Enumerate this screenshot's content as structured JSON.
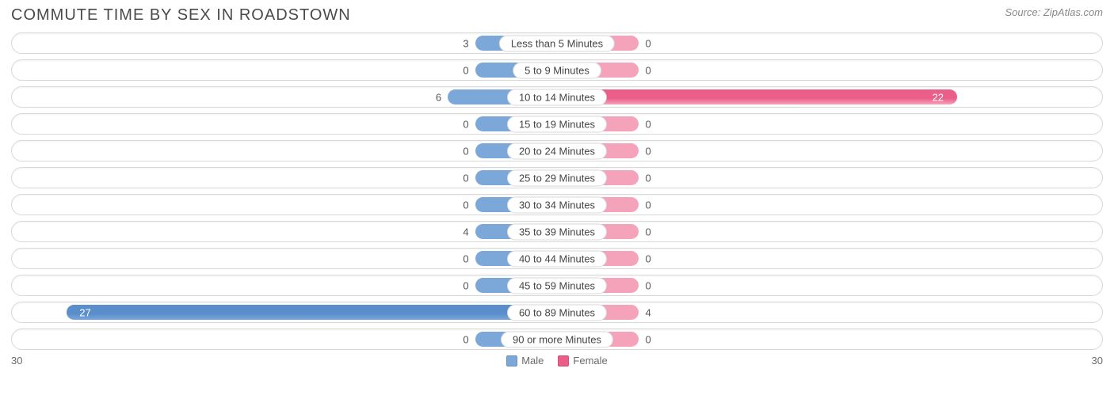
{
  "title": "COMMUTE TIME BY SEX IN ROADSTOWN",
  "source": "Source: ZipAtlas.com",
  "chart": {
    "type": "diverging-bar",
    "axis_max": 30,
    "min_bar_pct": 7.5,
    "center_halfwidth_pct": 50,
    "colors": {
      "male_fill": "#7ba7d9",
      "male_strong": "#5a8ecb",
      "female_fill": "#f5a3bb",
      "female_strong": "#ec5e8a",
      "row_border": "#d8d8d8",
      "value_text": "#555555",
      "value_text_on_bar": "#ffffff",
      "title_text": "#4a4a4a",
      "source_text": "#888888"
    },
    "legend": {
      "left": {
        "label": "Male",
        "color": "#7ba7d9"
      },
      "right": {
        "label": "Female",
        "color": "#ec5e8a"
      }
    },
    "axis_labels": {
      "left": "30",
      "right": "30"
    },
    "categories": [
      {
        "label": "Less than 5 Minutes",
        "male": 3,
        "female": 0
      },
      {
        "label": "5 to 9 Minutes",
        "male": 0,
        "female": 0
      },
      {
        "label": "10 to 14 Minutes",
        "male": 6,
        "female": 22
      },
      {
        "label": "15 to 19 Minutes",
        "male": 0,
        "female": 0
      },
      {
        "label": "20 to 24 Minutes",
        "male": 0,
        "female": 0
      },
      {
        "label": "25 to 29 Minutes",
        "male": 0,
        "female": 0
      },
      {
        "label": "30 to 34 Minutes",
        "male": 0,
        "female": 0
      },
      {
        "label": "35 to 39 Minutes",
        "male": 4,
        "female": 0
      },
      {
        "label": "40 to 44 Minutes",
        "male": 0,
        "female": 0
      },
      {
        "label": "45 to 59 Minutes",
        "male": 0,
        "female": 0
      },
      {
        "label": "60 to 89 Minutes",
        "male": 27,
        "female": 4
      },
      {
        "label": "90 or more Minutes",
        "male": 0,
        "female": 0
      }
    ]
  }
}
